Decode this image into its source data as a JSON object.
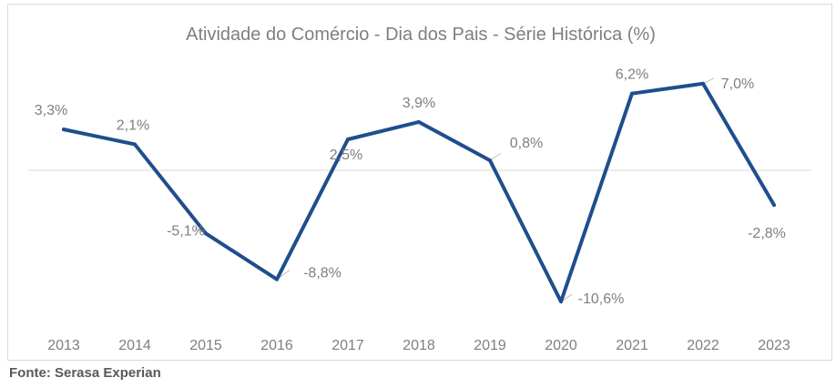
{
  "chart_data": {
    "type": "line",
    "title": "Atividade do Comércio - Dia dos Pais - Série Histórica (%)",
    "xlabel": "",
    "ylabel": "",
    "categories": [
      "2013",
      "2014",
      "2015",
      "2016",
      "2017",
      "2018",
      "2019",
      "2020",
      "2021",
      "2022",
      "2023"
    ],
    "series": [
      {
        "values": [
          3.3,
          2.1,
          -5.1,
          -8.8,
          2.5,
          3.9,
          0.8,
          -10.6,
          6.2,
          7.0,
          -2.8
        ],
        "labels": [
          "3,3%",
          "2,1%",
          "-5,1%",
          "-8,8%",
          "2,5%",
          "3,9%",
          "0,8%",
          "-10,6%",
          "6,2%",
          "7,0%",
          "-2,8%"
        ]
      }
    ],
    "ylim": [
      -12,
      8
    ],
    "grid": false,
    "legend": "none",
    "colors": {
      "line": "#1f4e8c",
      "label": "#7f7f7f",
      "zero_line": "#d9d9d9",
      "leader": "#bfbfbf"
    }
  },
  "footer": {
    "source": "Fonte: Serasa Experian"
  }
}
